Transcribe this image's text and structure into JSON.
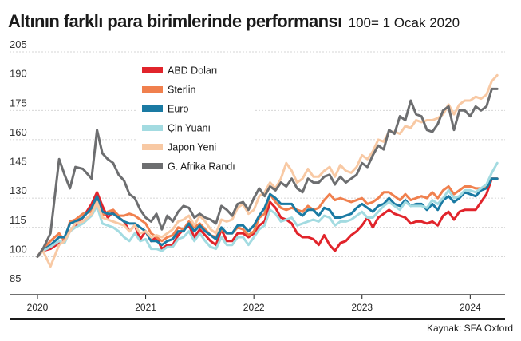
{
  "header": {
    "title": "Altının farklı para birimlerinde performansı",
    "subtitle": "100= 1 Ocak 2020"
  },
  "source": "Kaynak: SFA Oxford",
  "chart_data": {
    "type": "line",
    "title": "Altının farklı para birimlerinde performansı",
    "subtitle": "100= 1 Ocak 2020",
    "xlabel": "",
    "ylabel": "",
    "x_ticks": [
      "2020",
      "2021",
      "2022",
      "2023",
      "2024"
    ],
    "y_ticks": [
      205,
      190,
      175,
      160,
      145,
      130,
      115,
      100,
      85
    ],
    "xlim": [
      2020.0,
      2024.3
    ],
    "ylim": [
      85,
      205
    ],
    "grid": "horizontal",
    "legend_position": "top-left",
    "x": [
      2020.0,
      2020.05,
      2020.12,
      2020.2,
      2020.25,
      2020.3,
      2020.35,
      2020.42,
      2020.5,
      2020.55,
      2020.6,
      2020.65,
      2020.7,
      2020.75,
      2020.8,
      2020.85,
      2020.9,
      2020.95,
      2021.0,
      2021.05,
      2021.1,
      2021.15,
      2021.2,
      2021.25,
      2021.3,
      2021.35,
      2021.4,
      2021.45,
      2021.5,
      2021.55,
      2021.6,
      2021.65,
      2021.7,
      2021.75,
      2021.8,
      2021.85,
      2021.9,
      2021.95,
      2022.0,
      2022.05,
      2022.1,
      2022.15,
      2022.2,
      2022.25,
      2022.3,
      2022.35,
      2022.4,
      2022.45,
      2022.5,
      2022.55,
      2022.6,
      2022.65,
      2022.7,
      2022.75,
      2022.8,
      2022.85,
      2022.9,
      2022.95,
      2023.0,
      2023.05,
      2023.1,
      2023.15,
      2023.2,
      2023.25,
      2023.3,
      2023.35,
      2023.4,
      2023.45,
      2023.5,
      2023.55,
      2023.6,
      2023.65,
      2023.7,
      2023.75,
      2023.8,
      2023.85,
      2023.9,
      2023.95,
      2024.0,
      2024.05,
      2024.1,
      2024.15,
      2024.2,
      2024.25
    ],
    "series": [
      {
        "name": "ABD Doları",
        "color": "#e1242b",
        "values": [
          100,
          103,
          104,
          107,
          108,
          113,
          116,
          120,
          127,
          133,
          126,
          120,
          123,
          120,
          118,
          113,
          116,
          109,
          113,
          108,
          110,
          104,
          106,
          106,
          111,
          114,
          116,
          110,
          114,
          111,
          108,
          106,
          114,
          108,
          108,
          112,
          112,
          110,
          112,
          116,
          118,
          128,
          125,
          120,
          119,
          117,
          112,
          110,
          110,
          109,
          106,
          111,
          106,
          103,
          107,
          108,
          111,
          113,
          116,
          120,
          115,
          120,
          122,
          124,
          122,
          121,
          120,
          117,
          118,
          118,
          117,
          118,
          116,
          121,
          123,
          119,
          123,
          124,
          124,
          124,
          128,
          132,
          140,
          140
        ]
      },
      {
        "name": "Sterlin",
        "color": "#f0804e",
        "values": [
          100,
          104,
          108,
          112,
          108,
          118,
          119,
          122,
          123,
          130,
          121,
          123,
          124,
          121,
          121,
          122,
          121,
          119,
          117,
          112,
          110,
          108,
          110,
          111,
          115,
          114,
          118,
          115,
          117,
          114,
          111,
          110,
          114,
          112,
          112,
          115,
          114,
          111,
          113,
          120,
          122,
          132,
          128,
          125,
          124,
          125,
          124,
          123,
          126,
          124,
          125,
          129,
          132,
          129,
          130,
          129,
          128,
          129,
          130,
          127,
          128,
          130,
          133,
          133,
          131,
          129,
          132,
          129,
          130,
          131,
          130,
          133,
          130,
          134,
          136,
          132,
          134,
          136,
          136,
          135,
          135,
          136,
          140,
          140
        ]
      },
      {
        "name": "Euro",
        "color": "#1a7aa3",
        "values": [
          100,
          103,
          106,
          110,
          110,
          117,
          118,
          120,
          125,
          131,
          123,
          122,
          122,
          120,
          118,
          117,
          117,
          115,
          113,
          108,
          108,
          106,
          108,
          109,
          113,
          113,
          117,
          113,
          116,
          113,
          111,
          109,
          115,
          112,
          112,
          116,
          116,
          113,
          116,
          121,
          125,
          132,
          130,
          127,
          127,
          127,
          123,
          121,
          124,
          124,
          121,
          125,
          124,
          120,
          120,
          121,
          122,
          125,
          127,
          125,
          123,
          126,
          127,
          130,
          127,
          126,
          129,
          126,
          127,
          127,
          124,
          127,
          124,
          129,
          131,
          128,
          130,
          133,
          132,
          131,
          134,
          135,
          140,
          140
        ]
      },
      {
        "name": "Çin Yuanı",
        "color": "#a3dbe1",
        "values": [
          100,
          103,
          105,
          108,
          107,
          113,
          115,
          117,
          121,
          126,
          117,
          116,
          115,
          113,
          110,
          108,
          112,
          108,
          109,
          104,
          104,
          103,
          105,
          105,
          109,
          110,
          113,
          108,
          112,
          108,
          105,
          104,
          110,
          106,
          106,
          110,
          110,
          106,
          110,
          114,
          116,
          124,
          122,
          118,
          119,
          120,
          116,
          117,
          118,
          119,
          118,
          121,
          120,
          116,
          118,
          118,
          119,
          121,
          123,
          120,
          120,
          123,
          126,
          128,
          126,
          124,
          128,
          126,
          126,
          126,
          125,
          129,
          127,
          130,
          134,
          130,
          131,
          134,
          134,
          133,
          135,
          137,
          143,
          148
        ]
      },
      {
        "name": "Japon Yeni",
        "color": "#f8c9a4",
        "values": [
          100,
          103,
          95,
          106,
          108,
          113,
          117,
          118,
          122,
          128,
          120,
          119,
          118,
          117,
          116,
          113,
          116,
          112,
          113,
          110,
          111,
          110,
          112,
          114,
          118,
          119,
          121,
          116,
          121,
          118,
          114,
          112,
          119,
          118,
          119,
          125,
          127,
          122,
          124,
          131,
          133,
          138,
          135,
          140,
          148,
          144,
          138,
          140,
          145,
          141,
          141,
          144,
          146,
          141,
          147,
          144,
          143,
          146,
          152,
          150,
          154,
          160,
          159,
          164,
          164,
          163,
          167,
          166,
          170,
          169,
          170,
          170,
          171,
          173,
          178,
          173,
          178,
          180,
          180,
          182,
          181,
          183,
          190,
          193
        ]
      },
      {
        "name": "G. Afrika Randı",
        "color": "#6d6e70",
        "values": [
          100,
          104,
          112,
          150,
          142,
          135,
          146,
          145,
          140,
          165,
          153,
          150,
          148,
          142,
          139,
          132,
          130,
          124,
          120,
          118,
          122,
          114,
          121,
          118,
          123,
          126,
          125,
          120,
          122,
          120,
          119,
          117,
          126,
          124,
          121,
          127,
          128,
          124,
          130,
          135,
          131,
          136,
          134,
          138,
          136,
          140,
          135,
          133,
          140,
          138,
          138,
          141,
          142,
          137,
          141,
          138,
          140,
          142,
          148,
          146,
          152,
          157,
          155,
          165,
          163,
          172,
          170,
          180,
          173,
          172,
          165,
          164,
          168,
          175,
          177,
          165,
          175,
          175,
          172,
          177,
          175,
          177,
          186,
          186
        ]
      }
    ]
  }
}
